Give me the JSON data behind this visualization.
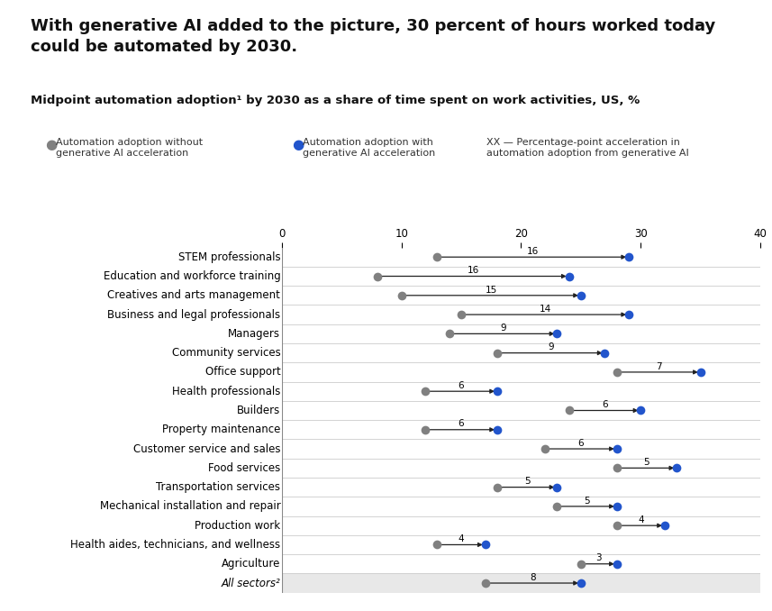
{
  "title": "With generative AI added to the picture, 30 percent of hours worked today\ncould be automated by 2030.",
  "subtitle": "Midpoint automation adoption¹ by 2030 as a share of time spent on work activities, US, %",
  "categories": [
    "STEM professionals",
    "Education and workforce training",
    "Creatives and arts management",
    "Business and legal professionals",
    "Managers",
    "Community services",
    "Office support",
    "Health professionals",
    "Builders",
    "Property maintenance",
    "Customer service and sales",
    "Food services",
    "Transportation services",
    "Mechanical installation and repair",
    "Production work",
    "Health aides, technicians, and wellness",
    "Agriculture",
    "All sectors²"
  ],
  "gray_values": [
    13,
    8,
    10,
    15,
    14,
    18,
    28,
    12,
    24,
    12,
    22,
    28,
    18,
    23,
    28,
    13,
    25,
    17
  ],
  "blue_values": [
    29,
    24,
    25,
    29,
    23,
    27,
    35,
    18,
    30,
    18,
    28,
    33,
    23,
    28,
    32,
    17,
    28,
    25
  ],
  "acc_labels": [
    16,
    16,
    15,
    14,
    9,
    9,
    7,
    6,
    6,
    6,
    6,
    5,
    5,
    5,
    4,
    4,
    3,
    8
  ],
  "xlim": [
    0,
    40
  ],
  "xticks": [
    0,
    10,
    20,
    30,
    40
  ],
  "gray_color": "#808080",
  "blue_color": "#2255cc",
  "arrow_color": "#222222",
  "background_color": "#ffffff",
  "last_row_bg": "#e8e8e8",
  "row_line_color": "#cccccc",
  "title_fontsize": 13,
  "subtitle_fontsize": 9.5,
  "category_fontsize": 8.5,
  "tick_fontsize": 8.5,
  "legend_fontsize": 8
}
